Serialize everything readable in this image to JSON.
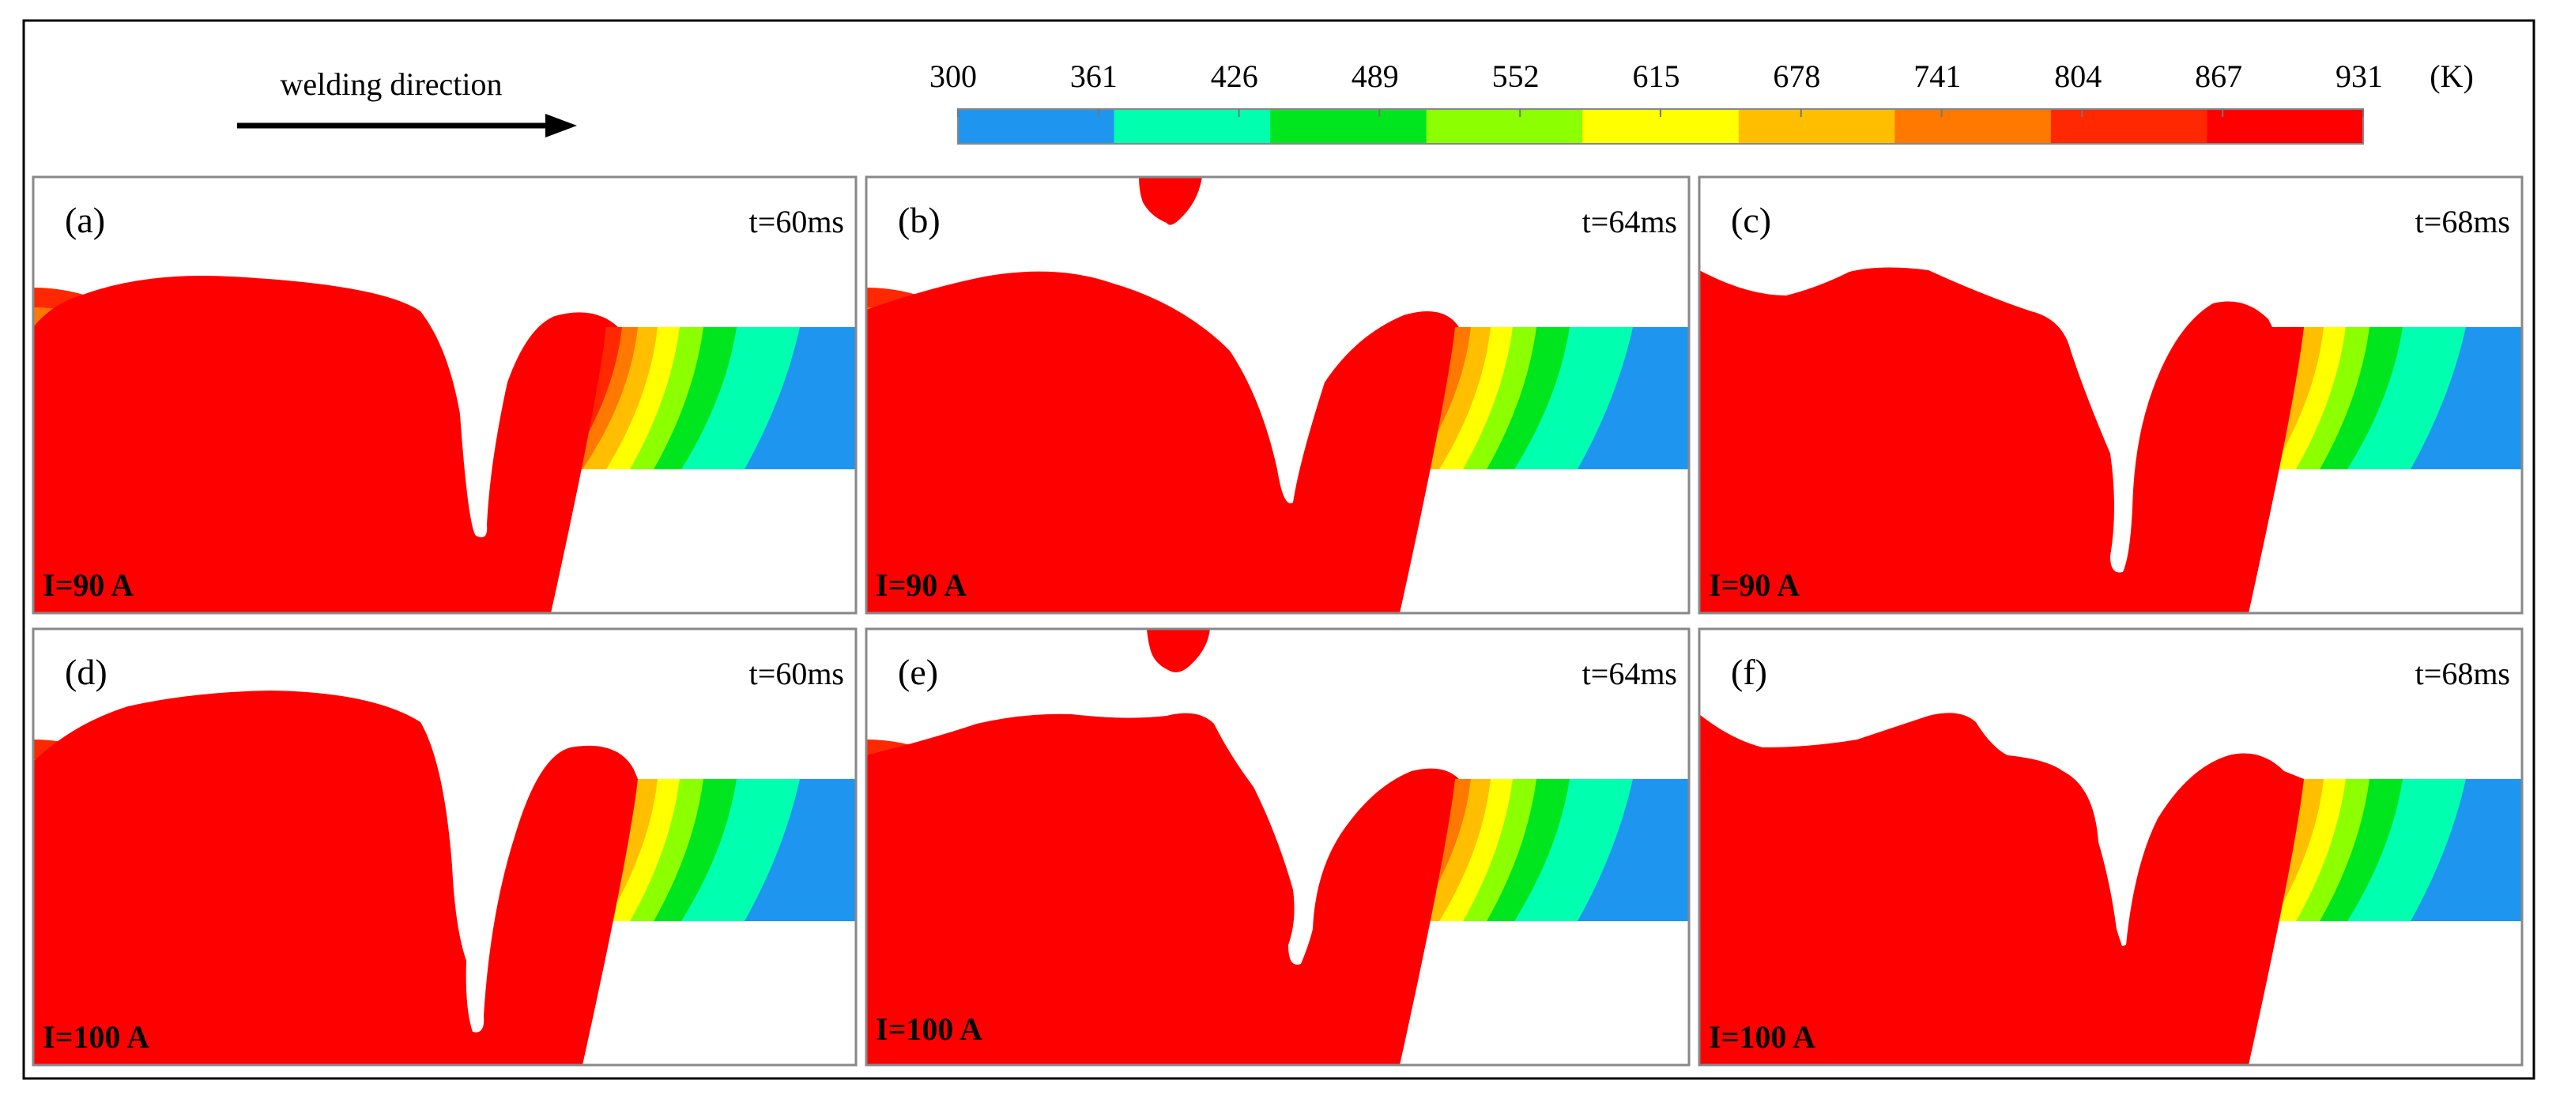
{
  "header": {
    "direction_label": "welding direction",
    "unit_label": "(K)"
  },
  "colorbar": {
    "ticks": [
      "300",
      "361",
      "426",
      "489",
      "552",
      "615",
      "678",
      "741",
      "804",
      "867",
      "931"
    ],
    "colors": [
      "#1E96F0",
      "#00FFAF",
      "#00E61E",
      "#8CFF00",
      "#FFFF00",
      "#FFBE00",
      "#FF7800",
      "#FF2800",
      "#FF0000"
    ]
  },
  "colors": {
    "melt": "#FF0000",
    "frame": "#000000",
    "panel_border": "#888888"
  },
  "panels": [
    {
      "id": "a",
      "label": "(a)",
      "time": "t=60ms",
      "current": "I=90 A"
    },
    {
      "id": "b",
      "label": "(b)",
      "time": "t=64ms",
      "current": "I=90 A"
    },
    {
      "id": "c",
      "label": "(c)",
      "time": "t=68ms",
      "current": "I=90 A"
    },
    {
      "id": "d",
      "label": "(d)",
      "time": "t=60ms",
      "current": "I=100 A"
    },
    {
      "id": "e",
      "label": "(e)",
      "time": "t=64ms",
      "current": "I=100 A"
    },
    {
      "id": "f",
      "label": "(f)",
      "time": "t=68ms",
      "current": "I=100 A"
    }
  ]
}
